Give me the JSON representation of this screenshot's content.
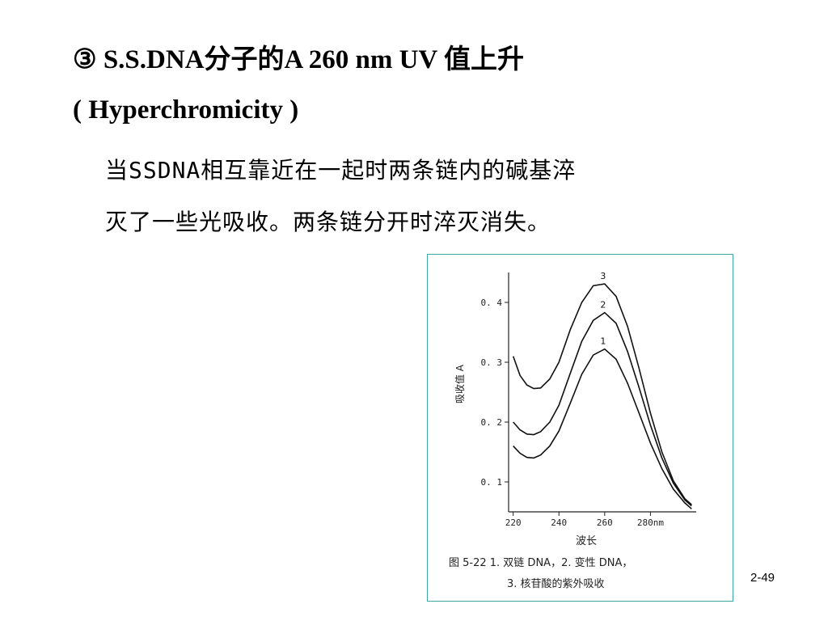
{
  "slide": {
    "title_line1": "③ S.S.DNA分子的A 260 nm UV 值上升",
    "title_line2": "( Hyperchromicity )",
    "body_line1": "当SSDNA相互靠近在一起时两条链内的碱基淬",
    "body_line2": "灭了一些光吸收。两条链分开时淬灭消失。",
    "page_number": "2-49"
  },
  "figure": {
    "caption_line1": "图 5-22   1. 双链 DNA，2. 变性 DNA，",
    "caption_line2": "3. 核苷酸的紫外吸收"
  },
  "chart_data": {
    "type": "line",
    "title": "",
    "xlabel": "波长",
    "ylabel": "吸收值 A",
    "xlim": [
      218,
      300
    ],
    "ylim": [
      0.05,
      0.45
    ],
    "x_ticks": [
      220,
      240,
      260,
      280
    ],
    "x_tick_labels": [
      "220",
      "240",
      "260",
      "280nm"
    ],
    "y_ticks": [
      0.1,
      0.2,
      0.3,
      0.4
    ],
    "y_tick_labels": [
      "0. 1",
      "0. 2",
      "0. 3",
      "0. 4"
    ],
    "series": [
      {
        "name": "1",
        "x": [
          220,
          223,
          226,
          229,
          232,
          236,
          240,
          245,
          250,
          255,
          260,
          265,
          270,
          275,
          280,
          285,
          290,
          295,
          298
        ],
        "y": [
          0.16,
          0.148,
          0.141,
          0.14,
          0.145,
          0.16,
          0.185,
          0.232,
          0.28,
          0.312,
          0.322,
          0.305,
          0.265,
          0.215,
          0.165,
          0.122,
          0.088,
          0.065,
          0.055
        ]
      },
      {
        "name": "2",
        "x": [
          220,
          223,
          226,
          229,
          232,
          236,
          240,
          245,
          250,
          255,
          260,
          265,
          270,
          275,
          280,
          285,
          290,
          295,
          298
        ],
        "y": [
          0.2,
          0.187,
          0.18,
          0.179,
          0.184,
          0.2,
          0.228,
          0.282,
          0.335,
          0.37,
          0.383,
          0.365,
          0.318,
          0.258,
          0.195,
          0.14,
          0.098,
          0.07,
          0.06
        ]
      },
      {
        "name": "3",
        "x": [
          220,
          223,
          226,
          229,
          232,
          236,
          240,
          245,
          250,
          255,
          260,
          265,
          270,
          275,
          280,
          285,
          290,
          295,
          298
        ],
        "y": [
          0.31,
          0.278,
          0.262,
          0.256,
          0.257,
          0.272,
          0.3,
          0.355,
          0.4,
          0.428,
          0.431,
          0.41,
          0.36,
          0.29,
          0.215,
          0.15,
          0.102,
          0.072,
          0.062
        ]
      }
    ]
  }
}
